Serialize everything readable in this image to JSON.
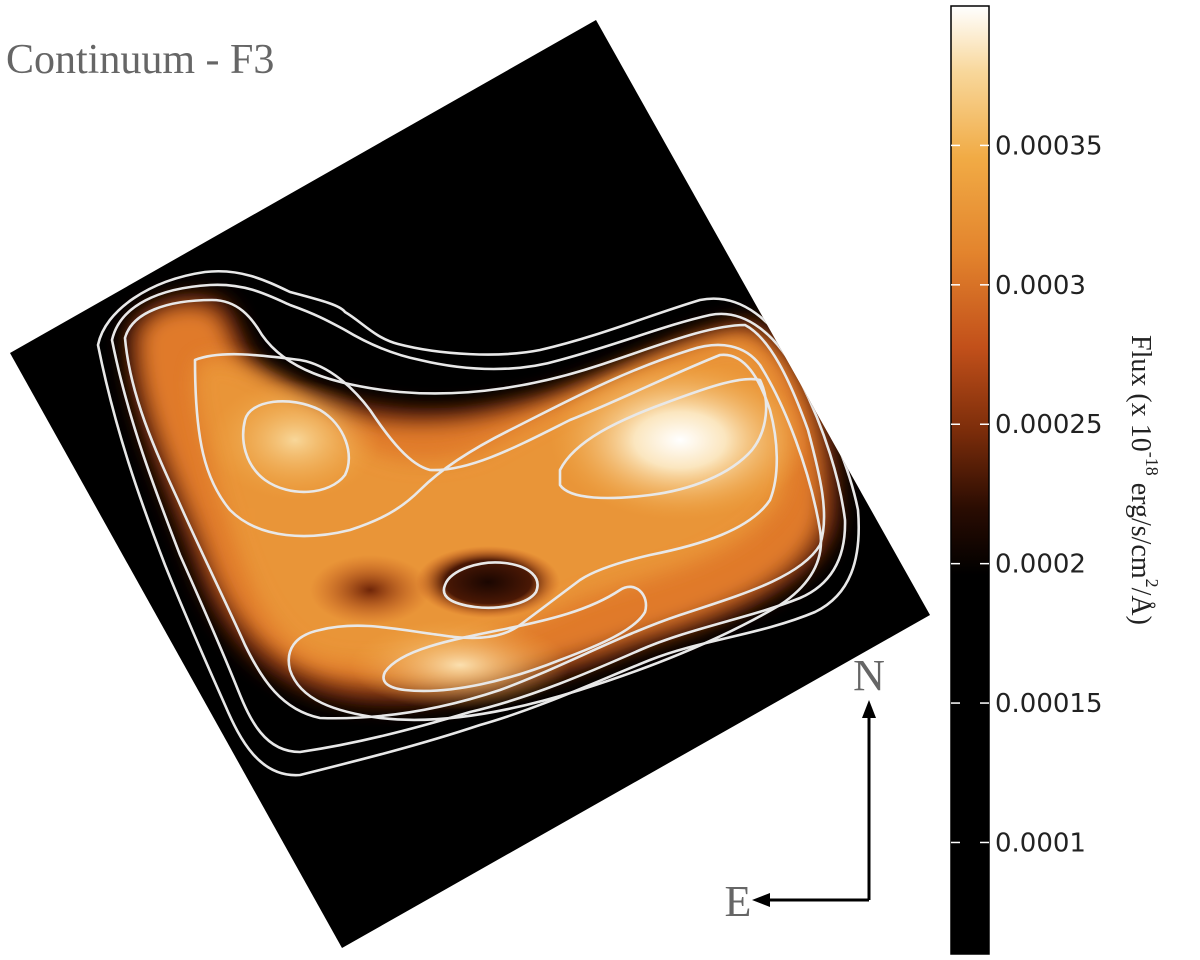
{
  "chart_data": {
    "type": "heatmap",
    "title": "Continuum - F3",
    "colorbar": {
      "label_prefix": "Flux (x 10",
      "label_exponent": "-18",
      "label_middle": " erg/s/cm",
      "label_sq": "2",
      "label_suffix": "/Å)",
      "vmin": 6e-05,
      "vmax": 0.0004,
      "ticks": [
        0.0001,
        0.00015,
        0.0002,
        0.00025,
        0.0003,
        0.00035
      ],
      "tick_labels": [
        "0.0001",
        "0.00015",
        "0.0002",
        "0.00025",
        "0.0003",
        "0.00035"
      ],
      "colormap": [
        "#000000",
        "#000000",
        "#2a0c02",
        "#7a2c0a",
        "#c2501a",
        "#e3842d",
        "#f1ab45",
        "#f8d79a",
        "#ffffff"
      ]
    },
    "compass": {
      "north": "N",
      "east": "E"
    },
    "contour_color": "#e8e8e8",
    "background_color": "#000000"
  }
}
